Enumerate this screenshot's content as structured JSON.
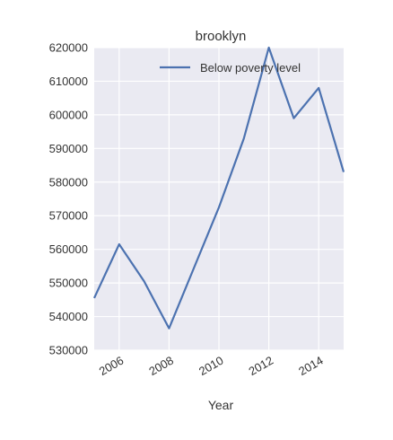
{
  "chart_data": {
    "type": "line",
    "title": "brooklyn",
    "xlabel": "Year",
    "ylabel": "",
    "x": [
      2005,
      2006,
      2007,
      2008,
      2009,
      2010,
      2011,
      2012,
      2013,
      2014,
      2015
    ],
    "series": [
      {
        "name": "Below poverty level",
        "values": [
          545500,
          561500,
          550500,
          536500,
          554500,
          572500,
          593000,
          620000,
          599000,
          608000,
          583000
        ],
        "color": "#4c72b0"
      }
    ],
    "xlim": [
      2005,
      2015
    ],
    "ylim": [
      530000,
      620000
    ],
    "x_ticks": [
      2006,
      2008,
      2010,
      2012,
      2014
    ],
    "y_ticks": [
      530000,
      540000,
      550000,
      560000,
      570000,
      580000,
      590000,
      600000,
      610000,
      620000
    ],
    "x_tick_labels": [
      "2006",
      "2008",
      "2010",
      "2012",
      "2014"
    ],
    "y_tick_labels": [
      "530000",
      "540000",
      "550000",
      "560000",
      "570000",
      "580000",
      "590000",
      "600000",
      "610000",
      "620000"
    ],
    "grid": true,
    "legend_position": "upper-right",
    "background_color": "#eaeaf2",
    "grid_color": "#ffffff"
  }
}
